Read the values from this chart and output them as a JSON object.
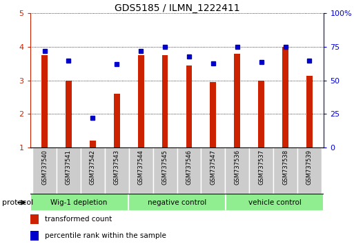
{
  "title": "GDS5185 / ILMN_1222411",
  "samples": [
    "GSM737540",
    "GSM737541",
    "GSM737542",
    "GSM737543",
    "GSM737544",
    "GSM737545",
    "GSM737546",
    "GSM737547",
    "GSM737536",
    "GSM737537",
    "GSM737538",
    "GSM737539"
  ],
  "red_bars": [
    3.75,
    3.0,
    1.2,
    2.6,
    3.75,
    3.75,
    3.45,
    2.95,
    3.8,
    3.0,
    4.0,
    3.15
  ],
  "blue_dots": [
    72,
    65,
    22,
    62,
    72,
    75,
    68,
    63,
    75,
    64,
    75,
    65
  ],
  "ylim_left": [
    1,
    5
  ],
  "ylim_right": [
    0,
    100
  ],
  "yticks_left": [
    1,
    2,
    3,
    4,
    5
  ],
  "yticks_right": [
    0,
    25,
    50,
    75,
    100
  ],
  "ytick_labels_right": [
    "0",
    "25",
    "50",
    "75",
    "100%"
  ],
  "bar_color": "#cc2200",
  "dot_color": "#0000cc",
  "bar_bottom": 1,
  "bar_width": 0.25,
  "light_green": "#90ee90",
  "dark_green": "#44bb44",
  "gray_label": "#cccccc",
  "legend_red_label": "transformed count",
  "legend_blue_label": "percentile rank within the sample",
  "protocol_label": "protocol",
  "group_labels": [
    "Wig-1 depletion",
    "negative control",
    "vehicle control"
  ],
  "group_boundaries": [
    0,
    4,
    8,
    12
  ]
}
